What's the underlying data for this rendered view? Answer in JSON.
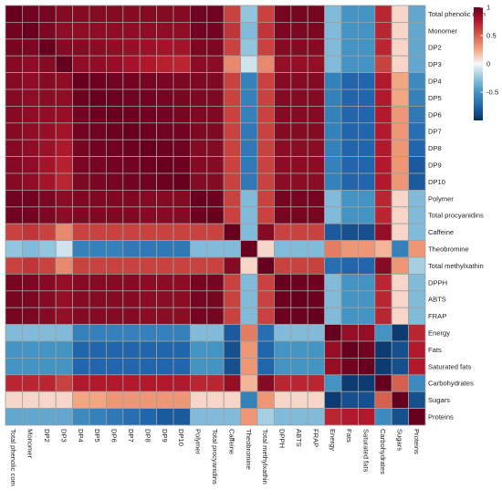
{
  "chart_data": {
    "type": "heatmap",
    "labels": [
      "Total phenolic com",
      "Monomer",
      "DP2",
      "DP3",
      "DP4",
      "DP5",
      "DP6",
      "DP7",
      "DP8",
      "DP9",
      "DP10",
      "Polymer",
      "Total procyanidins",
      "Caffeine",
      "Theobromine",
      "Total methylxathin",
      "DPPH",
      "ABTS",
      "FRAP",
      "Energy",
      "Fats",
      "Saturated fats",
      "Carbohydrates",
      "Sugars",
      "Proteins"
    ],
    "values": [
      [
        1.0,
        0.97,
        0.95,
        0.9,
        0.9,
        0.9,
        0.9,
        0.9,
        0.9,
        0.9,
        0.9,
        0.97,
        0.97,
        0.6,
        -0.25,
        0.6,
        0.95,
        0.95,
        0.95,
        -0.3,
        -0.5,
        -0.5,
        0.7,
        0.1,
        -0.4
      ],
      [
        0.97,
        1.0,
        0.93,
        0.87,
        0.87,
        0.87,
        0.87,
        0.87,
        0.87,
        0.87,
        0.87,
        0.96,
        0.96,
        0.65,
        -0.3,
        0.65,
        0.93,
        0.93,
        0.93,
        -0.3,
        -0.5,
        -0.5,
        0.7,
        0.1,
        -0.4
      ],
      [
        0.95,
        0.93,
        1.0,
        0.9,
        0.9,
        0.88,
        0.86,
        0.84,
        0.82,
        0.8,
        0.8,
        0.93,
        0.93,
        0.6,
        -0.25,
        0.6,
        0.9,
        0.9,
        0.9,
        -0.3,
        -0.5,
        -0.5,
        0.7,
        0.1,
        -0.4
      ],
      [
        0.9,
        0.87,
        0.9,
        1.0,
        0.86,
        0.86,
        0.84,
        0.8,
        0.76,
        0.72,
        0.7,
        0.88,
        0.88,
        0.35,
        -0.1,
        0.35,
        0.85,
        0.85,
        0.85,
        -0.3,
        -0.5,
        -0.5,
        0.6,
        0.1,
        -0.4
      ],
      [
        0.9,
        0.87,
        0.9,
        0.86,
        1.0,
        0.98,
        0.97,
        0.96,
        0.95,
        0.94,
        0.93,
        0.92,
        0.92,
        0.6,
        -0.6,
        0.6,
        0.9,
        0.9,
        0.9,
        -0.6,
        -0.75,
        -0.75,
        0.75,
        0.25,
        -0.55
      ],
      [
        0.9,
        0.87,
        0.88,
        0.86,
        0.98,
        1.0,
        0.98,
        0.97,
        0.96,
        0.95,
        0.94,
        0.92,
        0.92,
        0.6,
        -0.6,
        0.6,
        0.9,
        0.9,
        0.9,
        -0.6,
        -0.75,
        -0.75,
        0.75,
        0.25,
        -0.6
      ],
      [
        0.9,
        0.87,
        0.86,
        0.84,
        0.97,
        0.98,
        1.0,
        0.98,
        0.97,
        0.96,
        0.95,
        0.92,
        0.92,
        0.6,
        -0.6,
        0.6,
        0.9,
        0.9,
        0.9,
        -0.6,
        -0.75,
        -0.75,
        0.75,
        0.3,
        -0.65
      ],
      [
        0.9,
        0.87,
        0.84,
        0.8,
        0.96,
        0.97,
        0.98,
        1.0,
        0.98,
        0.97,
        0.96,
        0.92,
        0.92,
        0.6,
        -0.65,
        0.6,
        0.9,
        0.9,
        0.9,
        -0.6,
        -0.75,
        -0.75,
        0.75,
        0.3,
        -0.7
      ],
      [
        0.9,
        0.87,
        0.82,
        0.76,
        0.95,
        0.96,
        0.97,
        0.98,
        1.0,
        0.98,
        0.97,
        0.9,
        0.9,
        0.6,
        -0.65,
        0.6,
        0.88,
        0.88,
        0.88,
        -0.6,
        -0.75,
        -0.75,
        0.75,
        0.3,
        -0.75
      ],
      [
        0.9,
        0.87,
        0.8,
        0.72,
        0.94,
        0.95,
        0.96,
        0.97,
        0.98,
        1.0,
        0.98,
        0.9,
        0.9,
        0.6,
        -0.65,
        0.6,
        0.88,
        0.88,
        0.88,
        -0.6,
        -0.75,
        -0.75,
        0.75,
        0.3,
        -0.8
      ],
      [
        0.9,
        0.87,
        0.8,
        0.7,
        0.93,
        0.94,
        0.95,
        0.96,
        0.97,
        0.98,
        1.0,
        0.9,
        0.9,
        0.6,
        -0.65,
        0.6,
        0.88,
        0.88,
        0.88,
        -0.6,
        -0.75,
        -0.75,
        0.75,
        0.3,
        -0.8
      ],
      [
        0.97,
        0.96,
        0.93,
        0.88,
        0.92,
        0.92,
        0.92,
        0.92,
        0.9,
        0.9,
        0.9,
        1.0,
        0.98,
        0.6,
        -0.3,
        0.6,
        0.95,
        0.95,
        0.95,
        -0.3,
        -0.5,
        -0.5,
        0.7,
        0.1,
        -0.3
      ],
      [
        0.97,
        0.96,
        0.93,
        0.88,
        0.92,
        0.92,
        0.92,
        0.92,
        0.9,
        0.9,
        0.9,
        0.98,
        1.0,
        0.6,
        -0.3,
        0.6,
        0.95,
        0.95,
        0.95,
        -0.3,
        -0.5,
        -0.5,
        0.7,
        0.1,
        -0.3
      ],
      [
        0.6,
        0.65,
        0.6,
        0.35,
        0.6,
        0.6,
        0.6,
        0.6,
        0.6,
        0.6,
        0.6,
        0.6,
        0.6,
        1.0,
        -0.3,
        0.9,
        0.6,
        0.6,
        0.6,
        -0.8,
        -0.85,
        -0.85,
        0.85,
        0.1,
        -0.3
      ],
      [
        -0.25,
        -0.3,
        -0.25,
        -0.1,
        -0.6,
        -0.6,
        -0.6,
        -0.65,
        -0.65,
        -0.65,
        -0.65,
        -0.3,
        -0.3,
        -0.3,
        1.0,
        0.1,
        -0.3,
        -0.3,
        -0.3,
        0.4,
        0.3,
        0.3,
        0.2,
        -0.6,
        0.3
      ],
      [
        0.6,
        0.65,
        0.6,
        0.35,
        0.6,
        0.6,
        0.6,
        0.6,
        0.6,
        0.6,
        0.6,
        0.6,
        0.6,
        0.9,
        0.1,
        1.0,
        0.6,
        0.6,
        0.6,
        -0.7,
        -0.75,
        -0.75,
        0.9,
        0.3,
        -0.2
      ],
      [
        0.95,
        0.93,
        0.9,
        0.85,
        0.9,
        0.9,
        0.9,
        0.9,
        0.88,
        0.88,
        0.88,
        0.95,
        0.95,
        0.6,
        -0.3,
        0.6,
        1.0,
        0.98,
        0.98,
        -0.3,
        -0.5,
        -0.5,
        0.7,
        0.1,
        -0.3
      ],
      [
        0.95,
        0.93,
        0.9,
        0.85,
        0.9,
        0.9,
        0.9,
        0.9,
        0.88,
        0.88,
        0.88,
        0.95,
        0.95,
        0.6,
        -0.3,
        0.6,
        0.98,
        1.0,
        0.98,
        -0.3,
        -0.5,
        -0.5,
        0.7,
        0.1,
        -0.3
      ],
      [
        0.95,
        0.93,
        0.9,
        0.85,
        0.9,
        0.9,
        0.9,
        0.9,
        0.88,
        0.88,
        0.88,
        0.95,
        0.95,
        0.6,
        -0.3,
        0.6,
        0.98,
        0.98,
        1.0,
        -0.3,
        -0.5,
        -0.5,
        0.7,
        0.1,
        -0.3
      ],
      [
        -0.3,
        -0.3,
        -0.3,
        -0.3,
        -0.6,
        -0.6,
        -0.6,
        -0.6,
        -0.6,
        -0.6,
        -0.6,
        -0.3,
        -0.3,
        -0.8,
        0.4,
        -0.7,
        -0.3,
        -0.3,
        -0.3,
        1.0,
        0.85,
        0.85,
        -0.5,
        -0.95,
        0.7
      ],
      [
        -0.5,
        -0.5,
        -0.5,
        -0.5,
        -0.75,
        -0.75,
        -0.75,
        -0.75,
        -0.75,
        -0.75,
        -0.75,
        -0.5,
        -0.5,
        -0.85,
        0.3,
        -0.75,
        -0.5,
        -0.5,
        -0.5,
        0.85,
        1.0,
        0.97,
        -0.95,
        -0.85,
        0.75
      ],
      [
        -0.5,
        -0.5,
        -0.5,
        -0.5,
        -0.75,
        -0.75,
        -0.75,
        -0.75,
        -0.75,
        -0.75,
        -0.75,
        -0.5,
        -0.5,
        -0.85,
        0.3,
        -0.75,
        -0.5,
        -0.5,
        -0.5,
        0.85,
        0.97,
        1.0,
        -0.95,
        -0.85,
        0.75
      ],
      [
        0.7,
        0.7,
        0.7,
        0.6,
        0.75,
        0.75,
        0.75,
        0.75,
        0.75,
        0.75,
        0.75,
        0.7,
        0.7,
        0.85,
        0.2,
        0.9,
        0.7,
        0.7,
        0.7,
        -0.5,
        -0.95,
        -0.95,
        1.0,
        0.5,
        -0.55
      ],
      [
        0.1,
        0.1,
        0.1,
        0.1,
        0.25,
        0.25,
        0.3,
        0.3,
        0.3,
        0.3,
        0.3,
        0.1,
        0.1,
        0.1,
        -0.6,
        0.3,
        0.1,
        0.1,
        0.1,
        -0.95,
        -0.85,
        -0.85,
        0.5,
        1.0,
        -0.85
      ],
      [
        -0.4,
        -0.4,
        -0.4,
        -0.4,
        -0.55,
        -0.6,
        -0.65,
        -0.7,
        -0.75,
        -0.8,
        -0.8,
        -0.3,
        -0.3,
        -0.3,
        0.3,
        -0.2,
        -0.3,
        -0.3,
        -0.3,
        0.7,
        0.75,
        0.75,
        -0.55,
        -0.85,
        1.0
      ]
    ],
    "color_scale": {
      "range": [
        -1,
        1
      ],
      "stops": [
        "#053061",
        "#2166ac",
        "#4393c3",
        "#92c5de",
        "#f7f7f7",
        "#f4a582",
        "#d6604d",
        "#b2182b",
        "#67001f"
      ],
      "legend_ticks": [
        {
          "value": 1,
          "label": "1"
        },
        {
          "value": 0.5,
          "label": "0.5"
        },
        {
          "value": 0,
          "label": "0"
        },
        {
          "value": -0.5,
          "label": "-0.5"
        }
      ],
      "legend_position": "top-right"
    },
    "grid": true,
    "cell_border_color": "#9e9e9e"
  }
}
